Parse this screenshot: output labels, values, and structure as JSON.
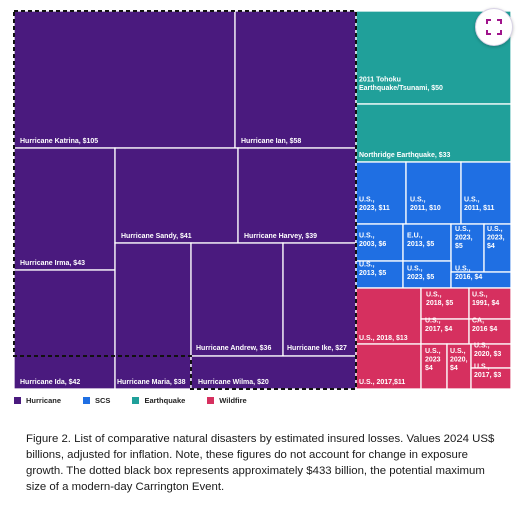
{
  "chart_data": {
    "type": "treemap",
    "title": "",
    "categories": [
      {
        "name": "Hurricane",
        "color": "#4a1a7e"
      },
      {
        "name": "SCS",
        "color": "#1f6fe3"
      },
      {
        "name": "Earthquake",
        "color": "#20a09a"
      },
      {
        "name": "Wildfire",
        "color": "#d6305f"
      }
    ],
    "series": [
      {
        "category": "Hurricane",
        "events": [
          {
            "label": "Hurricane Katrina, $105",
            "value": 105
          },
          {
            "label": "Hurricane Ian, $58",
            "value": 58
          },
          {
            "label": "Hurricane Irma, $43",
            "value": 43
          },
          {
            "label": "Hurricane Sandy, $41",
            "value": 41
          },
          {
            "label": "Hurricane Harvey, $39",
            "value": 39
          },
          {
            "label": "Hurricane Ida, $42",
            "value": 42
          },
          {
            "label": "Hurricane Maria, $38",
            "value": 38
          },
          {
            "label": "Hurricane Andrew, $36",
            "value": 36
          },
          {
            "label": "Hurricane Ike, $27",
            "value": 27
          },
          {
            "label": "Hurricane Wilma, $20",
            "value": 20
          }
        ]
      },
      {
        "category": "Earthquake",
        "events": [
          {
            "label": "2011 Tohoku Earthquake/Tsunami, $50",
            "value": 50
          },
          {
            "label": "Northridge Earthquake, $33",
            "value": 33
          }
        ]
      },
      {
        "category": "SCS",
        "events": [
          {
            "label": "U.S., 2023, $11",
            "value": 11
          },
          {
            "label": "U.S., 2011, $10",
            "value": 10
          },
          {
            "label": "U.S., 2011, $11",
            "value": 11
          },
          {
            "label": "U.S., 2003, $6",
            "value": 6
          },
          {
            "label": "E.U., 2013, $5",
            "value": 5
          },
          {
            "label": "U.S., 2023, $5",
            "value": 5
          },
          {
            "label": "U.S., 2023, $4",
            "value": 4
          },
          {
            "label": "U.S., 2013, $5",
            "value": 5
          },
          {
            "label": "U.S., 2023, $5",
            "value": 5
          },
          {
            "label": "U.S., 2016, $4",
            "value": 4
          }
        ]
      },
      {
        "category": "Wildfire",
        "events": [
          {
            "label": "U.S., 2018, $13",
            "value": 13
          },
          {
            "label": "U.S., 2018, $5",
            "value": 5
          },
          {
            "label": "U.S., 1991, $4",
            "value": 4
          },
          {
            "label": "U.S., 2017, $4",
            "value": 4
          },
          {
            "label": "CA, 2016 $4",
            "value": 4
          },
          {
            "label": "U.S., 2017,$11",
            "value": 11
          },
          {
            "label": "U.S., 2023 $4",
            "value": 4
          },
          {
            "label": "U.S., 2020, $4",
            "value": 4
          },
          {
            "label": "U.S., 2020, $3",
            "value": 3
          },
          {
            "label": "U.S., 2017, $3",
            "value": 3
          }
        ]
      }
    ],
    "highlight": {
      "style": "dotted black box",
      "approx_value": 433
    }
  },
  "caption": "Figure 2. List of comparative natural disasters by estimated insured losses. Values 2024 US$ billions, adjusted for inflation. Note, these figures do not account for change in exposure growth. The dotted black box represents approximately $433 billion, the potential maximum size of a modern-day Carrington Event.",
  "expand_button": {
    "icon": "expand-icon"
  }
}
